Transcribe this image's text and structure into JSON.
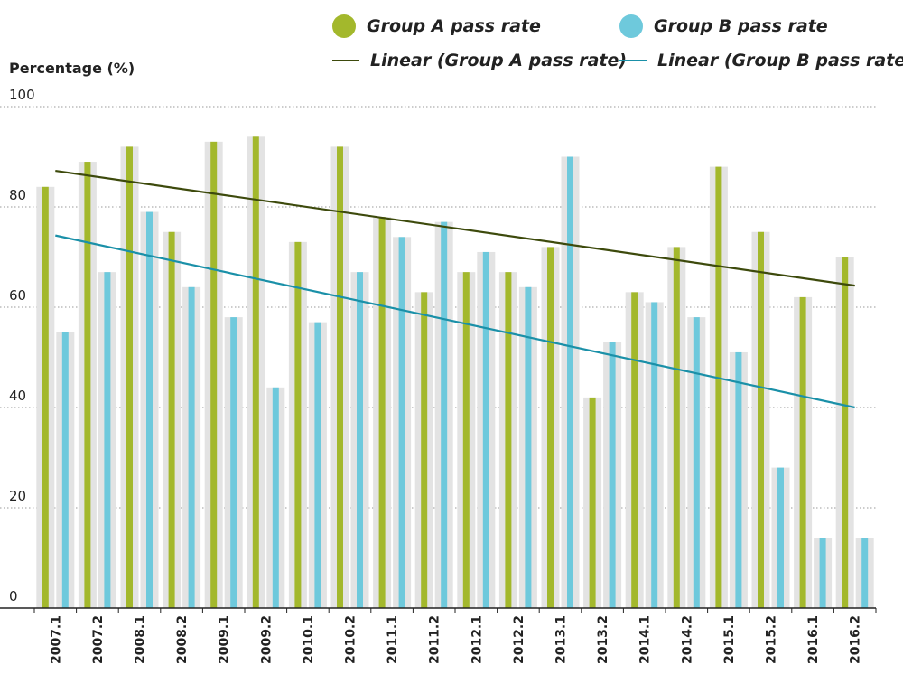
{
  "chart_data": {
    "type": "bar",
    "ylabel": "Percentage (%)",
    "ylim": [
      0,
      100
    ],
    "yticks": [
      0,
      20,
      40,
      60,
      80,
      100
    ],
    "grid": true,
    "categories": [
      "2007.1",
      "2007.2",
      "2008.1",
      "2008.2",
      "2009.1",
      "2009.2",
      "2010.1",
      "2010.2",
      "2011.1",
      "2011.2",
      "2012.1",
      "2012.2",
      "2013.1",
      "2013.2",
      "2014.1",
      "2014.2",
      "2015.1",
      "2015.2",
      "2016.1",
      "2016.2"
    ],
    "series": [
      {
        "name": "Group A pass rate",
        "color": "#a3b82c",
        "values": [
          84,
          89,
          92,
          75,
          93,
          94,
          73,
          92,
          78,
          63,
          67,
          67,
          72,
          42,
          63,
          72,
          88,
          75,
          62,
          70
        ]
      },
      {
        "name": "Group B pass rate",
        "color": "#6ec9dc",
        "values": [
          55,
          67,
          79,
          64,
          58,
          44,
          57,
          67,
          74,
          77,
          71,
          64,
          90,
          53,
          61,
          58,
          51,
          28,
          14,
          14
        ]
      }
    ],
    "trendlines": [
      {
        "name": "Linear (Group A pass rate)",
        "color": "#3d4a0c",
        "start": 87.2,
        "end": 64.3
      },
      {
        "name": "Linear (Group B pass rate)",
        "color": "#1a90a8",
        "start": 74.3,
        "end": 40.0
      }
    ],
    "legend_position": "top-right",
    "shadow_color": "#e3e3e3",
    "grid_color": "#9a9a9a",
    "axis_color": "#222222"
  }
}
